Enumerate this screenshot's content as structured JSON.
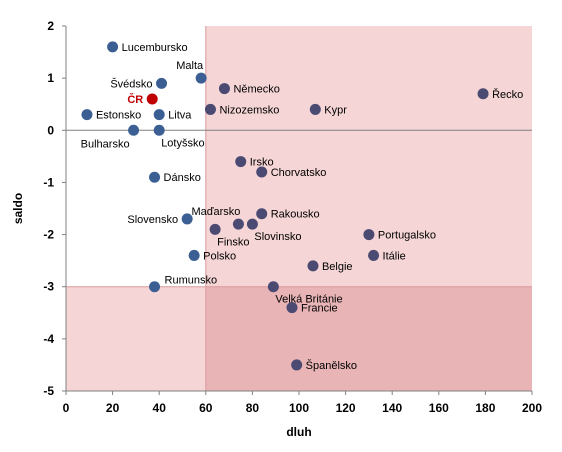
{
  "chart_data": {
    "type": "scatter",
    "xlabel": "dluh",
    "ylabel": "saldo",
    "xlim": [
      0,
      200
    ],
    "ylim": [
      -5,
      2
    ],
    "x_ticks": [
      "0",
      "20",
      "40",
      "60",
      "80",
      "100",
      "120",
      "140",
      "160",
      "180",
      "200"
    ],
    "y_ticks": [
      "2",
      "1",
      "0",
      "-1",
      "-2",
      "-3",
      "-4",
      "-5"
    ],
    "grid": false,
    "colors": {
      "point": "#3b5f93",
      "point_outside": "#4a4a72",
      "highlight": "#c00000",
      "region_light": "#f5d5d5",
      "region_dark": "#e8b4b6"
    },
    "shaded_regions": [
      {
        "x": [
          60,
          200
        ],
        "y": [
          -5,
          2
        ],
        "shade": "light"
      },
      {
        "x": [
          0,
          60
        ],
        "y": [
          -5,
          -3
        ],
        "shade": "light"
      },
      {
        "x": [
          60,
          200
        ],
        "y": [
          -5,
          -3
        ],
        "shade": "dark"
      }
    ],
    "reference_lines": {
      "x": 60,
      "y": -3
    },
    "points": [
      {
        "label": "Lucembursko",
        "x": 20,
        "y": 1.6,
        "anchor": "right"
      },
      {
        "label": "Malta",
        "x": 58,
        "y": 1.0,
        "anchor": "above-left"
      },
      {
        "label": "Švédsko",
        "x": 41,
        "y": 0.9,
        "anchor": "left"
      },
      {
        "label": "Německo",
        "x": 68,
        "y": 0.8,
        "anchor": "right"
      },
      {
        "label": "ČR",
        "x": 37,
        "y": 0.6,
        "anchor": "left",
        "highlight": true
      },
      {
        "label": "Estonsko",
        "x": 9,
        "y": 0.3,
        "anchor": "right"
      },
      {
        "label": "Litva",
        "x": 40,
        "y": 0.3,
        "anchor": "right"
      },
      {
        "label": "Nizozemsko",
        "x": 62,
        "y": 0.4,
        "anchor": "right"
      },
      {
        "label": "Kypr",
        "x": 107,
        "y": 0.4,
        "anchor": "right"
      },
      {
        "label": "Řecko",
        "x": 179,
        "y": 0.7,
        "anchor": "right"
      },
      {
        "label": "Bulharsko",
        "x": 29,
        "y": 0.0,
        "anchor": "below-left"
      },
      {
        "label": "Lotyšsko",
        "x": 40,
        "y": 0.0,
        "anchor": "below-right"
      },
      {
        "label": "Irsko",
        "x": 75,
        "y": -0.6,
        "anchor": "right"
      },
      {
        "label": "Chorvatsko",
        "x": 84,
        "y": -0.8,
        "anchor": "right"
      },
      {
        "label": "Dánsko",
        "x": 38,
        "y": -0.9,
        "anchor": "right"
      },
      {
        "label": "Slovensko",
        "x": 52,
        "y": -1.7,
        "anchor": "left"
      },
      {
        "label": "Maďarsko",
        "x": 74,
        "y": -1.8,
        "anchor": "above-left"
      },
      {
        "label": "Rakousko",
        "x": 84,
        "y": -1.6,
        "anchor": "right"
      },
      {
        "label": "Slovinsko",
        "x": 80,
        "y": -1.8,
        "anchor": "below-right"
      },
      {
        "label": "Finsko",
        "x": 64,
        "y": -1.9,
        "anchor": "below-right"
      },
      {
        "label": "Portugalsko",
        "x": 130,
        "y": -2.0,
        "anchor": "right"
      },
      {
        "label": "Polsko",
        "x": 55,
        "y": -2.4,
        "anchor": "right"
      },
      {
        "label": "Itálie",
        "x": 132,
        "y": -2.4,
        "anchor": "right"
      },
      {
        "label": "Belgie",
        "x": 106,
        "y": -2.6,
        "anchor": "right"
      },
      {
        "label": "Rumunsko",
        "x": 38,
        "y": -3.0,
        "anchor": "above-right"
      },
      {
        "label": "Velká Británie",
        "x": 89,
        "y": -3.0,
        "anchor": "below-right"
      },
      {
        "label": "Francie",
        "x": 97,
        "y": -3.4,
        "anchor": "right"
      },
      {
        "label": "Španělsko",
        "x": 99,
        "y": -4.5,
        "anchor": "right"
      }
    ]
  }
}
